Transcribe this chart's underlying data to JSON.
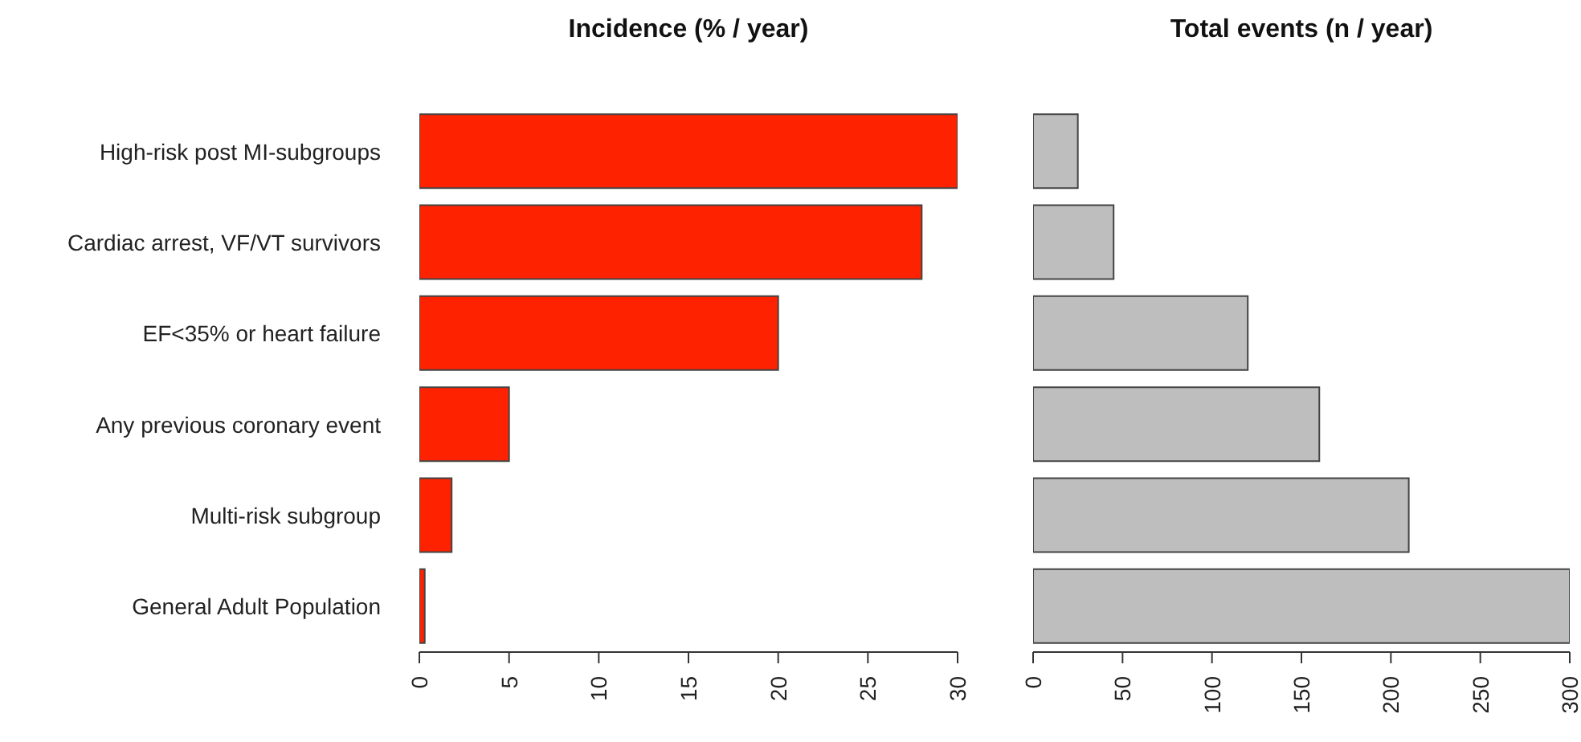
{
  "chart_data": [
    {
      "type": "bar",
      "orientation": "horizontal",
      "title": "Incidence (% / year)",
      "categories": [
        "High-risk post MI-subgroups",
        "Cardiac arrest, VF/VT survivors",
        "EF<35% or heart failure",
        "Any previous coronary event",
        "Multi-risk subgroup",
        "General Adult Population"
      ],
      "values": [
        30,
        28,
        20,
        5,
        1.8,
        0.3
      ],
      "color": "#ff2200",
      "xlim": [
        0,
        30
      ],
      "xticks": [
        0,
        5,
        10,
        15,
        20,
        25,
        30
      ],
      "grid": false,
      "legend": false
    },
    {
      "type": "bar",
      "orientation": "horizontal",
      "title": "Total events (n / year)",
      "categories": [
        null,
        null,
        null,
        null,
        null,
        null
      ],
      "values": [
        25,
        45,
        120,
        160,
        210,
        300
      ],
      "color": "#bebebe",
      "xlim": [
        0,
        300
      ],
      "xticks": [
        0,
        50,
        100,
        150,
        200,
        250,
        300
      ],
      "grid": false,
      "legend": false
    }
  ]
}
